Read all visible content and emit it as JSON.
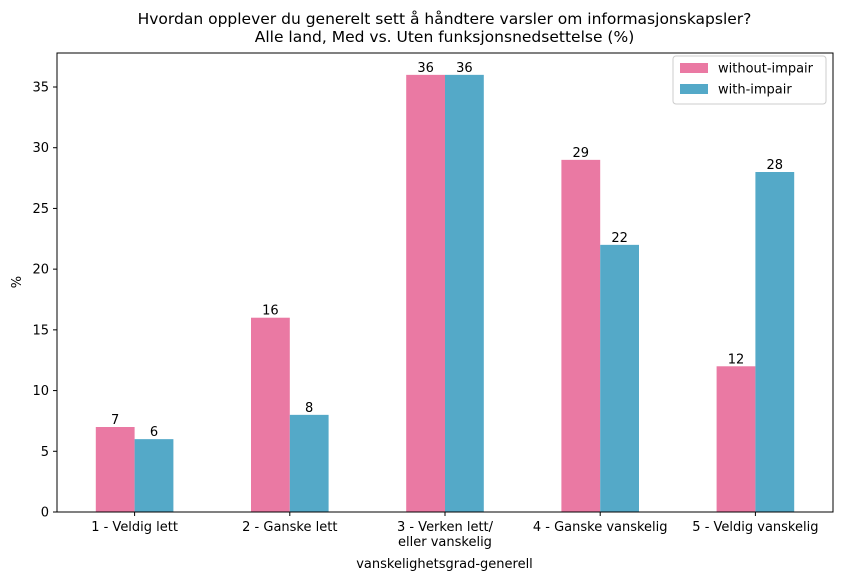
{
  "chart_data": {
    "type": "bar",
    "title_lines": [
      "Hvordan opplever du generelt sett å håndtere varsler om informasjonskapsler?",
      "Alle land, Med vs. Uten funksjonsnedsettelse (%)"
    ],
    "xlabel": "vanskelighetsgrad-generell",
    "ylabel": "%",
    "categories": [
      [
        "1 - Veldig lett"
      ],
      [
        "2 - Ganske lett"
      ],
      [
        "3 - Verken lett/",
        "eller vanskelig"
      ],
      [
        "4 - Ganske vanskelig"
      ],
      [
        "5 - Veldig vanskelig"
      ]
    ],
    "series": [
      {
        "name": "without-impair",
        "color": "#ea79a3",
        "values": [
          7,
          16,
          36,
          29,
          12
        ]
      },
      {
        "name": "with-impair",
        "color": "#54a9c8",
        "values": [
          6,
          8,
          36,
          22,
          28
        ]
      }
    ],
    "ylim": [
      0,
      37.8
    ],
    "yticks": [
      0,
      5,
      10,
      15,
      20,
      25,
      30,
      35
    ],
    "grid": false,
    "legend_position": "top-right"
  }
}
